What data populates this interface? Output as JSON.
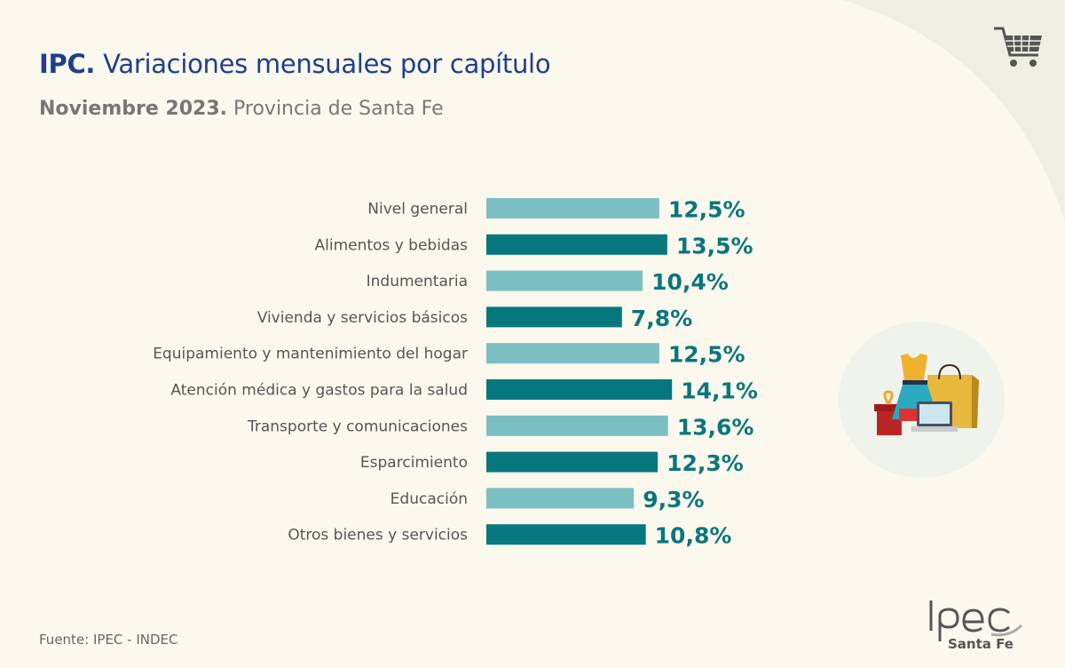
{
  "header": {
    "title_bold": "IPC.",
    "title_rest": " Variaciones mensuales por capítulo",
    "subtitle_bold": "Noviembre 2023.",
    "subtitle_rest": " Provincia de Santa Fe"
  },
  "footer": {
    "source": "Fuente: IPEC - INDEC",
    "logo_text": "Ipec",
    "logo_sub": "Santa Fe"
  },
  "icons": [
    "shopping-cart-icon",
    "shopping-illustration"
  ],
  "colors": {
    "light_bar": "#7bbfc3",
    "dark_bar": "#06777d",
    "value_label": "#0b767c",
    "title": "#1d3f8f"
  },
  "chart_data": {
    "type": "bar",
    "orientation": "horizontal",
    "categories": [
      "Nivel general",
      "Alimentos y bebidas",
      "Indumentaria",
      "Vivienda y servicios básicos",
      "Equipamiento y mantenimiento del hogar",
      "Atención médica y gastos para la salud",
      "Transporte y comunicaciones",
      "Esparcimiento",
      "Educación",
      "Otros bienes y servicios"
    ],
    "values": [
      12.5,
      13.5,
      10.4,
      7.8,
      12.5,
      14.1,
      13.6,
      12.3,
      9.3,
      10.8
    ],
    "labels": [
      "12,5%",
      "13,5%",
      "10,4%",
      "7,8%",
      "12,5%",
      "14,1%",
      "13,6%",
      "12,3%",
      "9,3%",
      "10,8%"
    ],
    "unit": "%",
    "grid": false,
    "legend": "none"
  }
}
